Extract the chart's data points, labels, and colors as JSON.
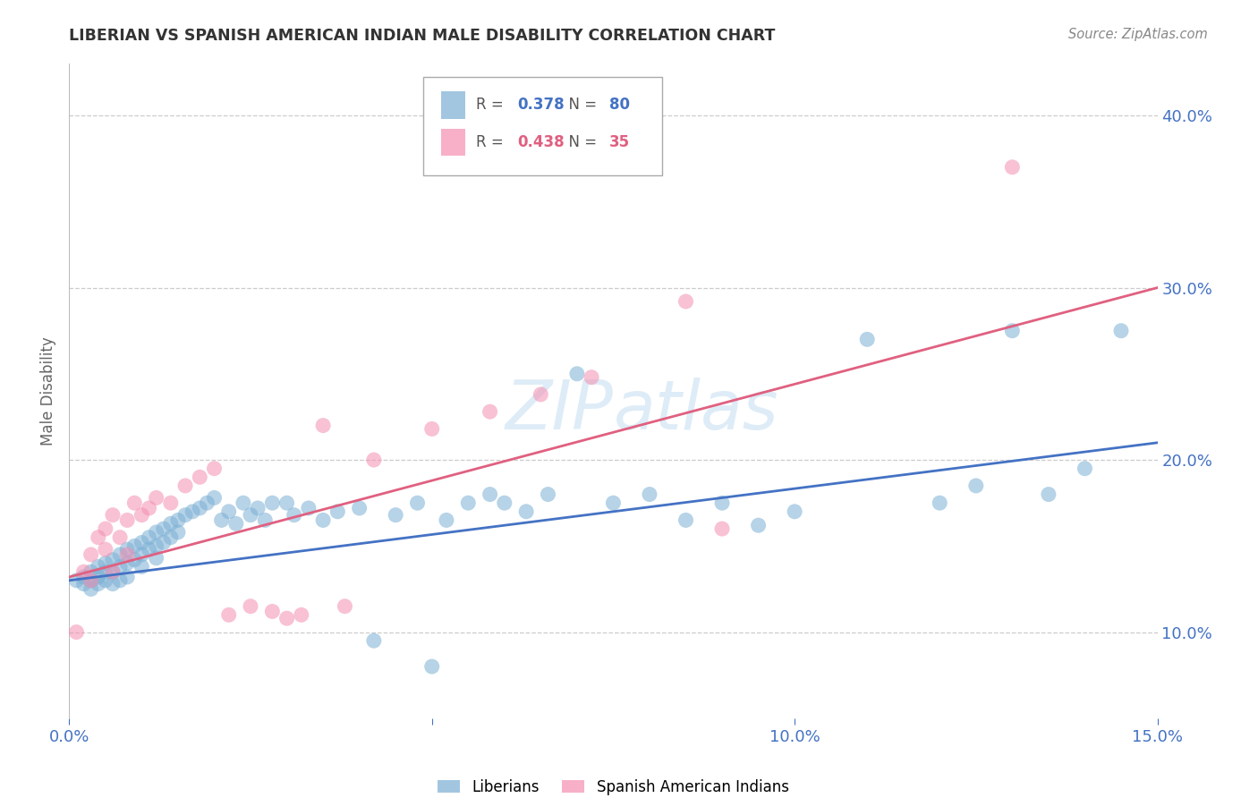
{
  "title": "LIBERIAN VS SPANISH AMERICAN INDIAN MALE DISABILITY CORRELATION CHART",
  "source": "Source: ZipAtlas.com",
  "ylabel": "Male Disability",
  "watermark": "ZIPatlas",
  "xlim": [
    0.0,
    0.15
  ],
  "ylim": [
    0.05,
    0.43
  ],
  "yticks": [
    0.1,
    0.2,
    0.3,
    0.4
  ],
  "ytick_labels": [
    "10.0%",
    "20.0%",
    "30.0%",
    "40.0%"
  ],
  "xticks": [
    0.0,
    0.05,
    0.1,
    0.15
  ],
  "xtick_labels": [
    "0.0%",
    "",
    "10.0%",
    "15.0%"
  ],
  "grid_color": "#cccccc",
  "background_color": "#ffffff",
  "tick_color": "#4472c4",
  "blue_color": "#7bafd4",
  "pink_color": "#f48fb1",
  "blue_line_color": "#4472c4",
  "pink_line_color": "#e06080",
  "legend_R_blue": "0.378",
  "legend_N_blue": "80",
  "legend_R_pink": "0.438",
  "legend_N_pink": "35",
  "blue_label": "Liberians",
  "pink_label": "Spanish American Indians",
  "blue_x": [
    0.001,
    0.002,
    0.002,
    0.003,
    0.003,
    0.003,
    0.004,
    0.004,
    0.004,
    0.005,
    0.005,
    0.005,
    0.006,
    0.006,
    0.006,
    0.007,
    0.007,
    0.007,
    0.008,
    0.008,
    0.008,
    0.009,
    0.009,
    0.01,
    0.01,
    0.01,
    0.011,
    0.011,
    0.012,
    0.012,
    0.012,
    0.013,
    0.013,
    0.014,
    0.014,
    0.015,
    0.015,
    0.016,
    0.017,
    0.018,
    0.019,
    0.02,
    0.021,
    0.022,
    0.023,
    0.024,
    0.025,
    0.026,
    0.027,
    0.028,
    0.03,
    0.031,
    0.033,
    0.035,
    0.037,
    0.04,
    0.042,
    0.045,
    0.048,
    0.05,
    0.052,
    0.055,
    0.058,
    0.06,
    0.063,
    0.066,
    0.07,
    0.075,
    0.08,
    0.085,
    0.09,
    0.095,
    0.1,
    0.11,
    0.12,
    0.125,
    0.13,
    0.135,
    0.14,
    0.145
  ],
  "blue_y": [
    0.13,
    0.132,
    0.128,
    0.135,
    0.13,
    0.125,
    0.138,
    0.132,
    0.128,
    0.14,
    0.135,
    0.13,
    0.142,
    0.135,
    0.128,
    0.145,
    0.138,
    0.13,
    0.148,
    0.14,
    0.132,
    0.15,
    0.142,
    0.152,
    0.145,
    0.138,
    0.155,
    0.148,
    0.158,
    0.15,
    0.143,
    0.16,
    0.152,
    0.163,
    0.155,
    0.165,
    0.158,
    0.168,
    0.17,
    0.172,
    0.175,
    0.178,
    0.165,
    0.17,
    0.163,
    0.175,
    0.168,
    0.172,
    0.165,
    0.175,
    0.175,
    0.168,
    0.172,
    0.165,
    0.17,
    0.172,
    0.095,
    0.168,
    0.175,
    0.08,
    0.165,
    0.175,
    0.18,
    0.175,
    0.17,
    0.18,
    0.25,
    0.175,
    0.18,
    0.165,
    0.175,
    0.162,
    0.17,
    0.27,
    0.175,
    0.185,
    0.275,
    0.18,
    0.195,
    0.275
  ],
  "pink_x": [
    0.001,
    0.002,
    0.003,
    0.003,
    0.004,
    0.005,
    0.005,
    0.006,
    0.006,
    0.007,
    0.008,
    0.008,
    0.009,
    0.01,
    0.011,
    0.012,
    0.014,
    0.016,
    0.018,
    0.02,
    0.022,
    0.025,
    0.028,
    0.03,
    0.032,
    0.035,
    0.038,
    0.042,
    0.05,
    0.058,
    0.065,
    0.072,
    0.085,
    0.09,
    0.13
  ],
  "pink_y": [
    0.1,
    0.135,
    0.145,
    0.13,
    0.155,
    0.16,
    0.148,
    0.168,
    0.135,
    0.155,
    0.165,
    0.145,
    0.175,
    0.168,
    0.172,
    0.178,
    0.175,
    0.185,
    0.19,
    0.195,
    0.11,
    0.115,
    0.112,
    0.108,
    0.11,
    0.22,
    0.115,
    0.2,
    0.218,
    0.228,
    0.238,
    0.248,
    0.292,
    0.16,
    0.37
  ]
}
